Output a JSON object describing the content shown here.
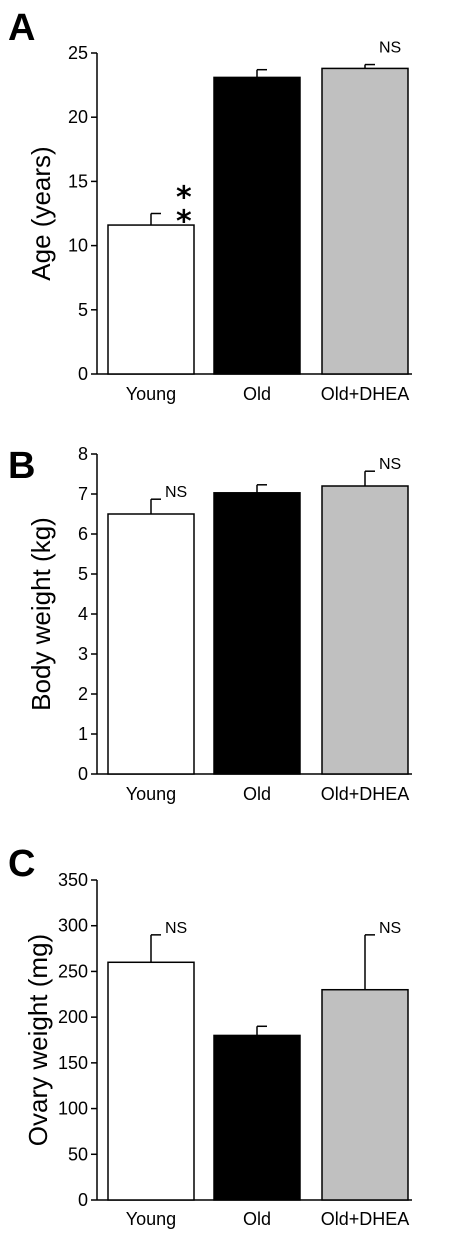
{
  "chart_data": [
    {
      "panel": "A",
      "type": "bar",
      "ylabel": "Age (years)",
      "ylim": [
        0,
        25
      ],
      "yticks": [
        0,
        5,
        10,
        15,
        20,
        25
      ],
      "categories": [
        "Young",
        "Old",
        "Old+DHEA"
      ],
      "values": [
        11.6,
        23.1,
        23.8
      ],
      "errors": [
        0.9,
        0.6,
        0.3
      ],
      "colors": [
        "#ffffff",
        "#000000",
        "#c0c0c0"
      ],
      "annotations": [
        {
          "category": "Young",
          "text": "*"
        },
        {
          "category": "Young",
          "text": "*"
        },
        {
          "category": "Old+DHEA",
          "text": "NS"
        }
      ]
    },
    {
      "panel": "B",
      "type": "bar",
      "ylabel": "Body weight (kg)",
      "ylim": [
        0,
        8
      ],
      "yticks": [
        0,
        1,
        2,
        3,
        4,
        5,
        6,
        7,
        8
      ],
      "categories": [
        "Young",
        "Old",
        "Old+DHEA"
      ],
      "values": [
        6.5,
        7.03,
        7.2
      ],
      "errors": [
        0.37,
        0.2,
        0.37
      ],
      "colors": [
        "#ffffff",
        "#000000",
        "#c0c0c0"
      ],
      "annotations": [
        {
          "category": "Young",
          "text": "NS"
        },
        {
          "category": "Old+DHEA",
          "text": "NS"
        }
      ]
    },
    {
      "panel": "C",
      "type": "bar",
      "ylabel": "Ovary weight (mg)",
      "ylim": [
        0,
        350
      ],
      "yticks": [
        0,
        50,
        100,
        150,
        200,
        250,
        300,
        350
      ],
      "categories": [
        "Young",
        "Old",
        "Old+DHEA"
      ],
      "values": [
        260,
        180,
        230
      ],
      "errors": [
        30,
        10,
        60
      ],
      "colors": [
        "#ffffff",
        "#000000",
        "#c0c0c0"
      ],
      "annotations": [
        {
          "category": "Young",
          "text": "NS"
        },
        {
          "category": "Old+DHEA",
          "text": "NS"
        }
      ]
    }
  ]
}
